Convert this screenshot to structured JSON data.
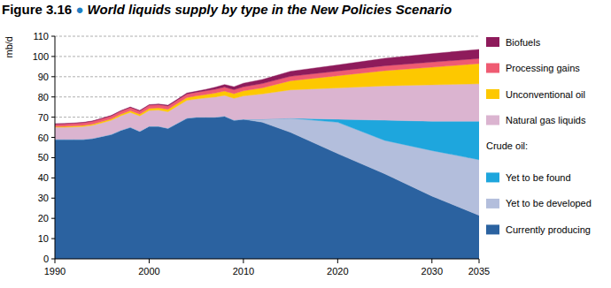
{
  "chart_data": {
    "type": "area",
    "stacked": true,
    "title": "Figure 3.16 ● World liquids supply by type in the New Policies Scenario",
    "y_label": "mb/d",
    "annotations": [
      "Crude oil:"
    ],
    "x": [
      1990,
      1991,
      1992,
      1993,
      1994,
      1995,
      1996,
      1997,
      1998,
      1999,
      2000,
      2001,
      2002,
      2003,
      2004,
      2005,
      2006,
      2007,
      2008,
      2009,
      2010,
      2012,
      2015,
      2020,
      2025,
      2030,
      2035
    ],
    "xlim": [
      1990,
      2035
    ],
    "xticks": [
      1990,
      2000,
      2010,
      2020,
      2030,
      2035
    ],
    "ylim": [
      0,
      110
    ],
    "yticks": [
      0,
      10,
      20,
      30,
      40,
      50,
      60,
      70,
      80,
      90,
      100,
      110
    ],
    "grid": true,
    "legend": "right",
    "series": [
      {
        "name": "Currently producing",
        "color": "#2b62a0",
        "values": [
          59,
          59,
          59,
          59,
          59.5,
          60.5,
          61.5,
          63.5,
          65,
          63,
          65.5,
          65.5,
          64.5,
          67,
          69.5,
          70,
          70,
          70,
          70.5,
          68.5,
          69,
          67.5,
          62.5,
          52,
          42,
          31,
          21.5
        ]
      },
      {
        "name": "Yet to be developed",
        "color": "#b3bedc",
        "values": [
          0,
          0,
          0,
          0,
          0,
          0,
          0,
          0,
          0,
          0,
          0,
          0,
          0,
          0,
          0,
          0,
          0,
          0,
          0,
          0,
          0,
          1.5,
          7,
          15.5,
          16.5,
          22.5,
          27.5
        ]
      },
      {
        "name": "Yet to be found",
        "color": "#1ea6dd",
        "values": [
          0,
          0,
          0,
          0,
          0,
          0,
          0,
          0,
          0,
          0,
          0,
          0,
          0,
          0,
          0,
          0,
          0,
          0,
          0,
          0,
          0,
          0,
          0,
          1.5,
          10,
          14.5,
          19
        ]
      },
      {
        "name": "Natural gas liquids",
        "color": "#dbb4d0",
        "values": [
          6,
          6,
          6.2,
          6.4,
          6.5,
          6.7,
          7,
          7.2,
          7.4,
          7.6,
          7.8,
          8,
          8.2,
          8.5,
          8.8,
          9,
          9.5,
          10,
          10.3,
          10.8,
          11.5,
          12.5,
          14,
          15.5,
          17,
          18,
          18.5
        ]
      },
      {
        "name": "Unconventional oil",
        "color": "#fdc800",
        "values": [
          0.4,
          0.45,
          0.5,
          0.55,
          0.6,
          0.65,
          0.7,
          0.8,
          0.85,
          0.9,
          1,
          1.1,
          1.2,
          1.3,
          1.4,
          1.5,
          1.7,
          1.9,
          2.1,
          2.3,
          2.5,
          3,
          4.5,
          6,
          7.5,
          8.7,
          10
        ]
      },
      {
        "name": "Processing gains",
        "color": "#ef5b72",
        "values": [
          1.2,
          1.2,
          1.25,
          1.3,
          1.35,
          1.4,
          1.45,
          1.5,
          1.5,
          1.55,
          1.6,
          1.62,
          1.65,
          1.7,
          1.75,
          1.8,
          1.85,
          1.9,
          1.95,
          1.95,
          2,
          2.1,
          2.2,
          2.3,
          2.4,
          2.5,
          2.5
        ]
      },
      {
        "name": "Biofuels",
        "color": "#8e1b5b",
        "values": [
          0.2,
          0.2,
          0.2,
          0.2,
          0.2,
          0.22,
          0.24,
          0.26,
          0.28,
          0.3,
          0.3,
          0.32,
          0.35,
          0.4,
          0.45,
          0.5,
          0.7,
          1,
          1.3,
          1.5,
          1.8,
          2,
          2.5,
          3,
          3.7,
          4.2,
          4.5
        ]
      }
    ]
  }
}
